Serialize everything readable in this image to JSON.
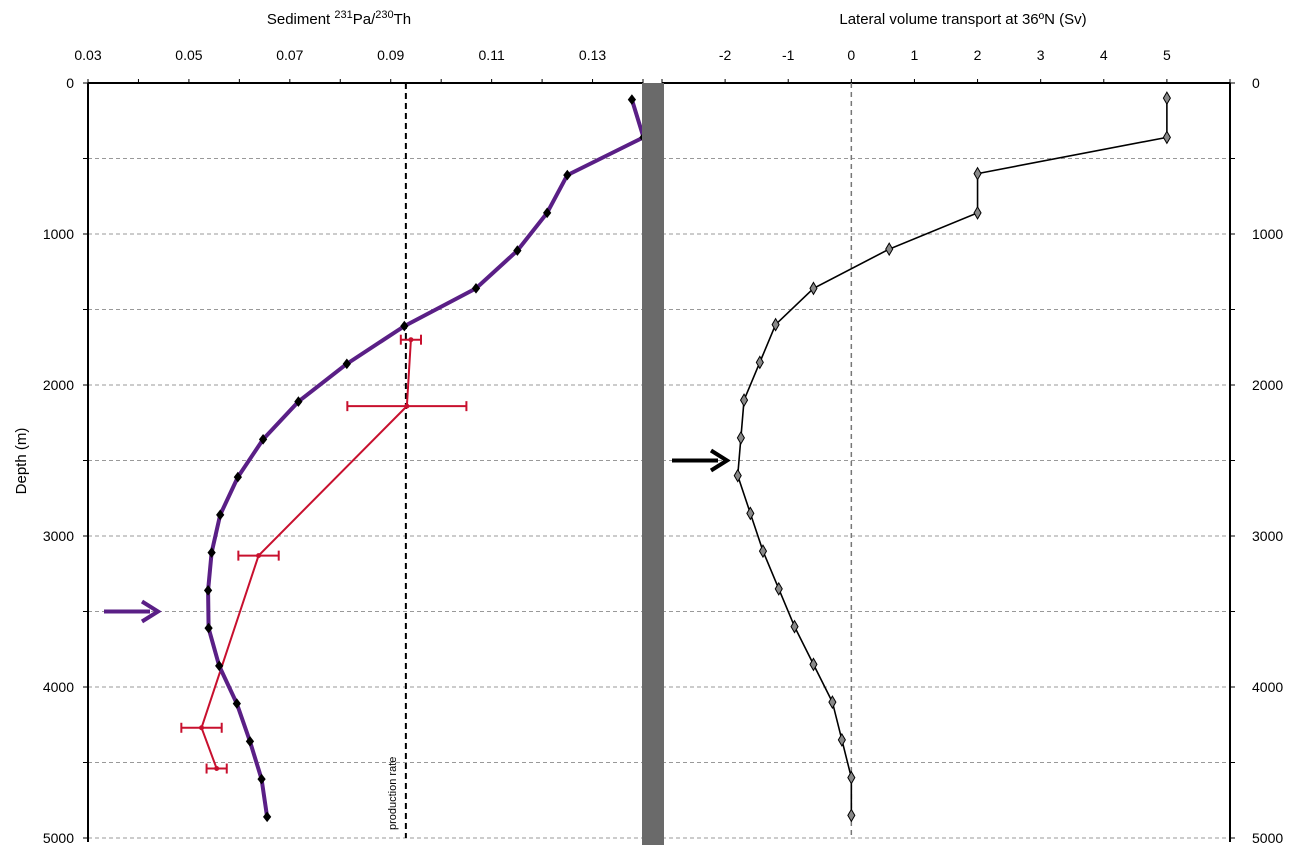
{
  "chart_data": [
    {
      "type": "line",
      "title_prefix": "Sediment ",
      "title_sup1": "231",
      "title_mid": "Pa/",
      "title_sup2": "230",
      "title_suffix": "Th",
      "xlabel": "Sediment 231Pa/230Th",
      "ylabel": "Depth (m)",
      "x_axis_position": "top",
      "xlim": [
        0.03,
        0.14
      ],
      "ylim": [
        5000,
        0
      ],
      "x_ticks": [
        0.03,
        0.05,
        0.07,
        0.09,
        0.11,
        0.13
      ],
      "x_tick_labels": [
        "0.03",
        "0.05",
        "0.07",
        "0.09",
        "0.11",
        "0.13"
      ],
      "y_ticks": [
        0,
        1000,
        2000,
        3000,
        4000,
        5000
      ],
      "y_tick_labels": [
        "0",
        "1000",
        "2000",
        "3000",
        "4000",
        "5000"
      ],
      "grid": "horizontal dashed every 500 m",
      "production_rate": {
        "x": 0.093,
        "label": "production rate",
        "color": "#000000",
        "style": "dashed"
      },
      "arrow": {
        "depth": 3500,
        "color": "#5a1f86"
      },
      "series": [
        {
          "color": "#5a1f86",
          "marker": "diamond",
          "points": [
            {
              "x": 0.1378,
              "y": 110
            },
            {
              "x": 0.1401,
              "y": 360
            },
            {
              "x": 0.125,
              "y": 610
            },
            {
              "x": 0.121,
              "y": 860
            },
            {
              "x": 0.1151,
              "y": 1110
            },
            {
              "x": 0.1069,
              "y": 1360
            },
            {
              "x": 0.0927,
              "y": 1610
            },
            {
              "x": 0.0813,
              "y": 1860
            },
            {
              "x": 0.0717,
              "y": 2110
            },
            {
              "x": 0.0647,
              "y": 2360
            },
            {
              "x": 0.0597,
              "y": 2610
            },
            {
              "x": 0.0562,
              "y": 2860
            },
            {
              "x": 0.0545,
              "y": 3110
            },
            {
              "x": 0.0538,
              "y": 3360
            },
            {
              "x": 0.0539,
              "y": 3610
            },
            {
              "x": 0.056,
              "y": 3860
            },
            {
              "x": 0.0595,
              "y": 4110
            },
            {
              "x": 0.0621,
              "y": 4360
            },
            {
              "x": 0.0644,
              "y": 4610
            },
            {
              "x": 0.0655,
              "y": 4860
            }
          ]
        },
        {
          "color": "#c8102e",
          "marker": "errorbar",
          "points": [
            {
              "x": 0.094,
              "y": 1700,
              "xerr": 0.002
            },
            {
              "x": 0.0932,
              "y": 2140,
              "xerr": 0.0118
            },
            {
              "x": 0.0638,
              "y": 3130,
              "xerr": 0.004
            },
            {
              "x": 0.0525,
              "y": 4270,
              "xerr": 0.004
            },
            {
              "x": 0.0555,
              "y": 4540,
              "xerr": 0.002
            }
          ]
        }
      ]
    },
    {
      "type": "line",
      "title": "Lateral volume transport at 36ºN (Sv)",
      "xlabel": "Lateral volume transport at 36ºN (Sv)",
      "x_axis_position": "top",
      "xlim": [
        -3,
        6
      ],
      "ylim": [
        5000,
        0
      ],
      "x_ticks": [
        -2,
        -1,
        0,
        1,
        2,
        3,
        4,
        5
      ],
      "x_tick_labels": [
        "-2",
        "-1",
        "0",
        "1",
        "2",
        "3",
        "4",
        "5"
      ],
      "y_ticks": [
        0,
        1000,
        2000,
        3000,
        4000,
        5000
      ],
      "y_tick_labels": [
        "0",
        "1000",
        "2000",
        "3000",
        "4000",
        "5000"
      ],
      "grid": "horizontal dashed every 500 m",
      "zero_line": {
        "x": 0,
        "color": "#777777",
        "style": "dashed"
      },
      "arrow": {
        "depth": 2500,
        "color": "#000000"
      },
      "series": [
        {
          "color": "#000000",
          "marker": "diamond",
          "points": [
            {
              "x": 5.0,
              "y": 100
            },
            {
              "x": 5.0,
              "y": 360
            },
            {
              "x": 2.0,
              "y": 600
            },
            {
              "x": 2.0,
              "y": 860
            },
            {
              "x": 0.6,
              "y": 1100
            },
            {
              "x": -0.6,
              "y": 1360
            },
            {
              "x": -1.2,
              "y": 1600
            },
            {
              "x": -1.45,
              "y": 1850
            },
            {
              "x": -1.7,
              "y": 2100
            },
            {
              "x": -1.75,
              "y": 2350
            },
            {
              "x": -1.8,
              "y": 2600
            },
            {
              "x": -1.6,
              "y": 2850
            },
            {
              "x": -1.4,
              "y": 3100
            },
            {
              "x": -1.15,
              "y": 3350
            },
            {
              "x": -0.9,
              "y": 3600
            },
            {
              "x": -0.6,
              "y": 3850
            },
            {
              "x": -0.3,
              "y": 4100
            },
            {
              "x": -0.15,
              "y": 4350
            },
            {
              "x": 0.0,
              "y": 4600
            },
            {
              "x": 0.0,
              "y": 4850
            }
          ]
        }
      ]
    }
  ]
}
